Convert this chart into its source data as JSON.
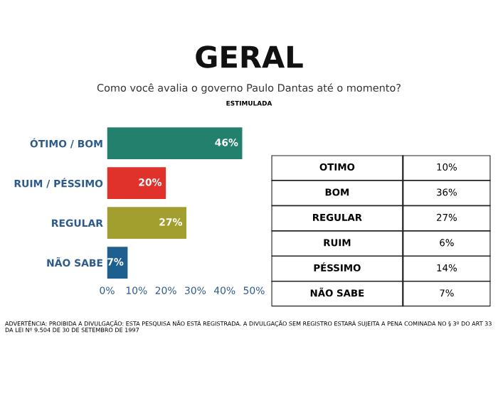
{
  "chart_data": [
    {
      "type": "bar",
      "orientation": "horizontal",
      "title": "GERAL",
      "subtitle": "Como você avalia o governo Paulo Dantas até o momento?",
      "annotations": [
        "ESTIMULADA",
        "ADVERTÊNCIA: PROIBIDA A DIVULGAÇÃO: ESTA PESQUISA NÃO ESTÁ REGISTRADA. A DIVULGAÇÃO SEM REGISTRO ESTARÁ SUJEITA A PENA COMINADA NO § 3º DO ART 33 DA LEI Nº 9.504 DE 30 DE SETEMBRO DE 1997"
      ],
      "categories": [
        "ÓTIMO / BOM",
        "RUIM / PÉSSIMO",
        "REGULAR",
        "NÃO SABE"
      ],
      "values": [
        46,
        20,
        27,
        7
      ],
      "colors": [
        "#23806c",
        "#e0312a",
        "#a39f2f",
        "#1f5f8f"
      ],
      "value_labels": [
        "46%",
        "20%",
        "27%",
        "7%"
      ],
      "xlim": [
        0,
        50
      ],
      "xticks": [
        {
          "value": 0,
          "label": "0%"
        },
        {
          "value": 10,
          "label": "10%"
        },
        {
          "value": 20,
          "label": "20%"
        },
        {
          "value": 30,
          "label": "30%"
        },
        {
          "value": 40,
          "label": "40%"
        },
        {
          "value": 50,
          "label": "50%"
        }
      ],
      "grid": false,
      "legend": false
    },
    {
      "type": "other",
      "categories": [
        "OTIMO",
        "BOM",
        "REGULAR",
        "RUIM",
        "PÉSSIMO",
        "NÃO SABE"
      ],
      "values": [
        10,
        36,
        27,
        6,
        14,
        7
      ],
      "value_labels": [
        "10%",
        "36%",
        "27%",
        "6%",
        "14%",
        "7%"
      ]
    }
  ]
}
